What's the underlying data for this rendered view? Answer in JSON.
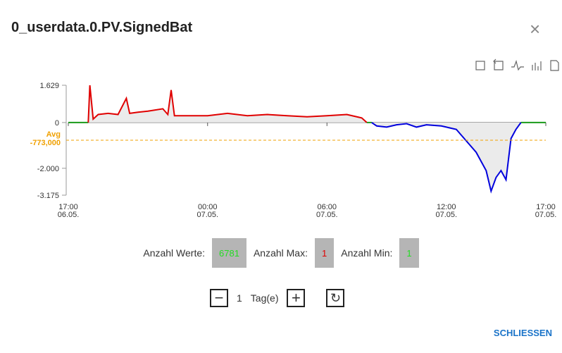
{
  "dialog": {
    "title": "0_userdata.0.PV.SignedBat",
    "close_button": "SCHLIESSEN"
  },
  "chart_data": {
    "type": "line",
    "x": [
      "06.05. 17:00",
      "06.05. 18:00",
      "06.05. 18:05",
      "06.05. 18:15",
      "06.05. 18:30",
      "06.05. 19:00",
      "06.05. 19:30",
      "06.05. 19:55",
      "06.05. 20:05",
      "06.05. 20:30",
      "06.05. 21:00",
      "06.05. 21:45",
      "06.05. 22:00",
      "06.05. 22:10",
      "06.05. 22:20",
      "06.05. 23:00",
      "07.05. 00:00",
      "07.05. 01:00",
      "07.05. 02:00",
      "07.05. 03:00",
      "07.05. 04:00",
      "07.05. 05:00",
      "07.05. 06:00",
      "07.05. 07:00",
      "07.05. 07:45",
      "07.05. 08:00",
      "07.05. 08:15",
      "07.05. 08:30",
      "07.05. 09:00",
      "07.05. 09:30",
      "07.05. 10:00",
      "07.05. 10:30",
      "07.05. 11:00",
      "07.05. 11:45",
      "07.05. 12:00",
      "07.05. 12:30",
      "07.05. 13:00",
      "07.05. 13:30",
      "07.05. 14:00",
      "07.05. 14:15",
      "07.05. 14:30",
      "07.05. 14:45",
      "07.05. 15:00",
      "07.05. 15:15",
      "07.05. 15:30",
      "07.05. 15:45",
      "07.05. 17:00"
    ],
    "series": [
      {
        "color": "#1a9a1a",
        "values": [
          0,
          0,
          null,
          null,
          null,
          null,
          null,
          null,
          null,
          null,
          null,
          null,
          null,
          null,
          null,
          null,
          null,
          null,
          null,
          null,
          null,
          null,
          null,
          null,
          null,
          0,
          0,
          null,
          null,
          null,
          null,
          null,
          null,
          null,
          null,
          null,
          null,
          null,
          null,
          null,
          null,
          null,
          null,
          null,
          null,
          0,
          0
        ]
      },
      {
        "color": "#e00000",
        "values": [
          null,
          0,
          1629,
          150,
          350,
          400,
          350,
          1060,
          400,
          450,
          500,
          600,
          350,
          1420,
          300,
          300,
          300,
          400,
          300,
          350,
          300,
          250,
          300,
          350,
          200,
          0,
          null,
          null,
          null,
          null,
          null,
          null,
          null,
          null,
          null,
          null,
          null,
          null,
          null,
          null,
          null,
          null,
          null,
          null,
          null,
          null,
          null
        ]
      },
      {
        "color": "#0000dd",
        "values": [
          null,
          null,
          null,
          null,
          null,
          null,
          null,
          null,
          null,
          null,
          null,
          null,
          null,
          null,
          null,
          null,
          null,
          null,
          null,
          null,
          null,
          null,
          null,
          null,
          null,
          null,
          0,
          -150,
          -200,
          -100,
          -50,
          -200,
          -100,
          -150,
          -200,
          -300,
          -800,
          -1300,
          -2100,
          -3000,
          -2400,
          -2100,
          -2500,
          -700,
          -300,
          0,
          null
        ]
      }
    ],
    "xlim": [
      "06.05. 17:00",
      "07.05. 17:00"
    ],
    "xticks": [
      {
        "time": "17:00",
        "date": "06.05."
      },
      {
        "time": "00:00",
        "date": "07.05."
      },
      {
        "time": "06:00",
        "date": "07.05."
      },
      {
        "time": "12:00",
        "date": "07.05."
      },
      {
        "time": "17:00",
        "date": "07.05."
      }
    ],
    "ylim": [
      -3175,
      1629
    ],
    "yticks": [
      {
        "value": 1629,
        "label": "1.629"
      },
      0,
      {
        "value": -2000,
        "label": "-2.000"
      },
      {
        "value": -3175,
        "label": "-3.175"
      }
    ],
    "avg": {
      "name": "Avg",
      "value": -773,
      "label": "-773,000",
      "color": "#f0a000"
    },
    "fill": "#ebebeb"
  },
  "stats": [
    {
      "label": "Anzahl Werte:",
      "value": "6781",
      "color": "#22dd22"
    },
    {
      "label": "Anzahl Max:",
      "value": "1",
      "color": "#e00000"
    },
    {
      "label": "Anzahl Min:",
      "value": "1",
      "color": "#22dd22"
    }
  ],
  "range": {
    "count": "1",
    "unit": "Tag(e)"
  }
}
